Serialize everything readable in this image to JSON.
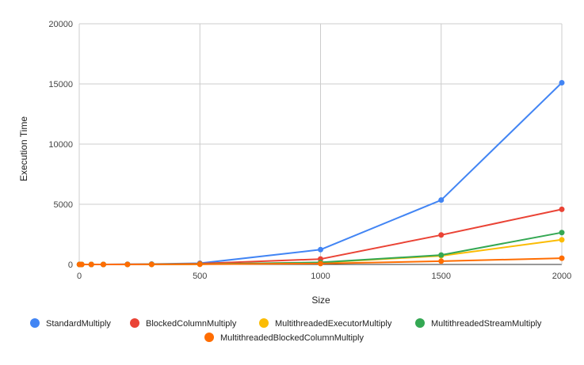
{
  "chart_data": {
    "type": "line",
    "title": "",
    "xlabel": "Size",
    "ylabel": "Execution Time",
    "xlim": [
      0,
      2000
    ],
    "ylim": [
      0,
      20000
    ],
    "xticks": [
      0,
      500,
      1000,
      1500,
      2000
    ],
    "yticks": [
      0,
      5000,
      10000,
      15000,
      20000
    ],
    "grid": true,
    "legend_position": "bottom",
    "x": [
      1,
      10,
      50,
      100,
      200,
      300,
      500,
      1000,
      1500,
      2000
    ],
    "series": [
      {
        "name": "StandardMultiply",
        "color": "#4285f4",
        "values": [
          0,
          0,
          1,
          3,
          14,
          35,
          100,
          1230,
          5350,
          15100
        ]
      },
      {
        "name": "BlockedColumnMultiply",
        "color": "#ea4335",
        "values": [
          0,
          0,
          1,
          2,
          7,
          18,
          65,
          450,
          2450,
          4580
        ]
      },
      {
        "name": "MultithreadedExecutorMultiply",
        "color": "#fbbc04",
        "values": [
          0,
          0,
          0,
          1,
          3,
          7,
          25,
          150,
          720,
          2050
        ]
      },
      {
        "name": "MultithreadedStreamMultiply",
        "color": "#34a853",
        "values": [
          0,
          0,
          0,
          1,
          3,
          8,
          28,
          170,
          780,
          2650
        ]
      },
      {
        "name": "MultithreadedBlockedColumnMultiply",
        "color": "#ff6d01",
        "values": [
          0,
          0,
          0,
          1,
          2,
          4,
          12,
          70,
          270,
          520
        ]
      }
    ]
  }
}
